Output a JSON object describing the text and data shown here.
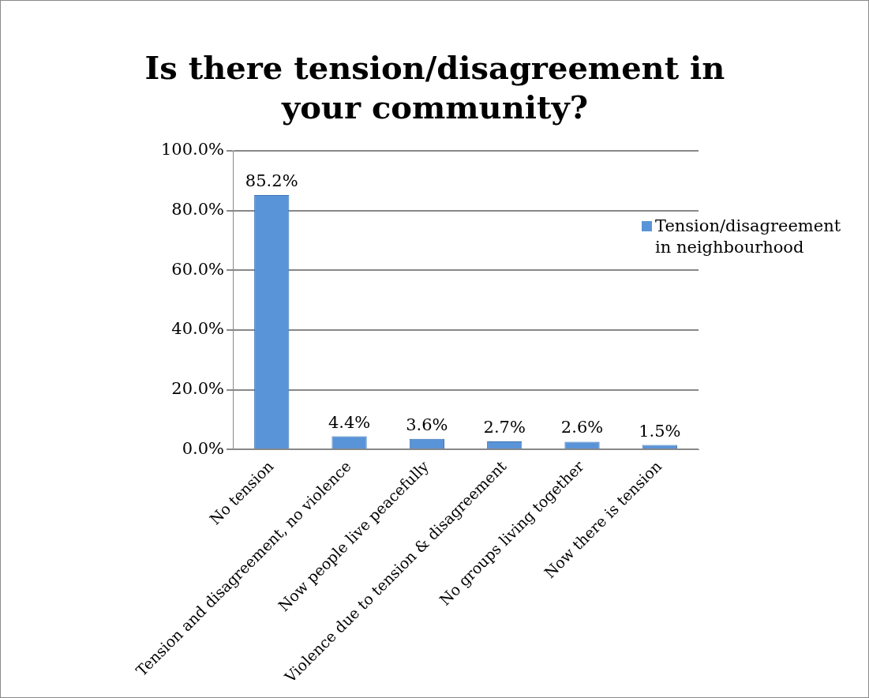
{
  "chart_data": {
    "type": "bar",
    "title": "Is there tension/disagreement in your community?",
    "categories": [
      "No tension",
      "Tension and disagreement, no violence",
      "Now people live peacefully",
      "Violence due to tension & disagreement",
      "No groups living together",
      "Now there is tension"
    ],
    "series": [
      {
        "name": "Tension/disagreement in neighbourhood",
        "color": "#5a94d8",
        "values": [
          85.2,
          4.4,
          3.6,
          2.7,
          2.6,
          1.5
        ],
        "value_labels": [
          "85.2%",
          "4.4%",
          "3.6%",
          "2.7%",
          "2.6%",
          "1.5%"
        ]
      }
    ],
    "ylim": [
      0,
      100
    ],
    "yticks": [
      {
        "value": 0,
        "label": "0.0%"
      },
      {
        "value": 20,
        "label": "20.0%"
      },
      {
        "value": 40,
        "label": "40.0%"
      },
      {
        "value": 60,
        "label": "60.0%"
      },
      {
        "value": 80,
        "label": "80.0%"
      },
      {
        "value": 100,
        "label": "100.0%"
      }
    ],
    "grid": "y",
    "legend": "right"
  }
}
